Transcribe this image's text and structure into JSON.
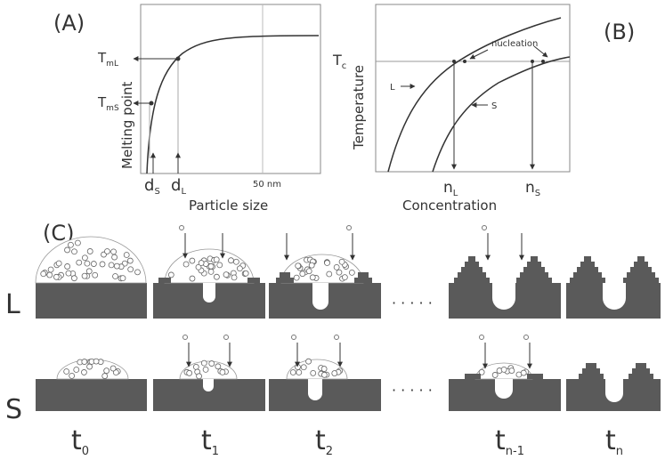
{
  "panels": {
    "a": "(A)",
    "b": "(B)",
    "c": "(C)"
  },
  "panel_a": {
    "ylabel": "Melting point",
    "xlabel": "Particle size",
    "tick_50": "50 nm",
    "tml": "T",
    "tml_sub": "mL",
    "tms": "T",
    "tms_sub": "mS",
    "ds": "d",
    "ds_sub": "S",
    "dl": "d",
    "dl_sub": "L"
  },
  "panel_b": {
    "ylabel": "Temperature",
    "xlabel": "Concentration",
    "tc": "T",
    "tc_sub": "c",
    "nucleation": "nucleation",
    "curve_l": "L",
    "curve_s": "S",
    "nl": "n",
    "nl_sub": "L",
    "ns": "n",
    "ns_sub": "S"
  },
  "panel_c": {
    "row_l": "L",
    "row_s": "S",
    "ellipsis_top": "· · · · ·",
    "ellipsis_bottom": "· · · · ·",
    "times": [
      {
        "base": "t",
        "sub": "0"
      },
      {
        "base": "t",
        "sub": "1"
      },
      {
        "base": "t",
        "sub": "2"
      },
      {
        "base": "t",
        "sub": "n-1"
      },
      {
        "base": "t",
        "sub": "n"
      }
    ]
  },
  "colors": {
    "substrate": "#5a5a5a",
    "line": "#333333",
    "grid": "#bbbbbb"
  }
}
